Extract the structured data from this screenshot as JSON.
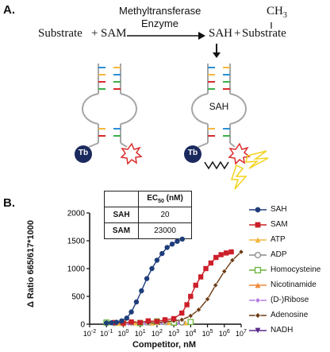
{
  "panel_a": {
    "label": "A.",
    "enzyme_line1": "Methyltransferase",
    "enzyme_line2": "Enzyme",
    "substrate": "Substrate",
    "plus1": "+",
    "sam": "SAM",
    "sah": "SAH",
    "plus2": "+",
    "substrate2": "Substrate",
    "methyl": "CH",
    "methyl_sub": "3",
    "sah_in_probe": "SAH",
    "tb_left": "Tb",
    "tb_right": "Tb"
  },
  "panel_b": {
    "label": "B.",
    "table": {
      "header_pre": "EC",
      "header_sub": "50",
      "header_post": " (nM)",
      "rows": [
        {
          "name": "SAH",
          "value": "20"
        },
        {
          "name": "SAM",
          "value": "23000"
        }
      ]
    },
    "legend": [
      {
        "label": "SAH",
        "color": "#1f3d7a",
        "marker": "circle"
      },
      {
        "label": "SAM",
        "color": "#cc1f2a",
        "marker": "square"
      },
      {
        "label": "ATP",
        "color": "#f5b63e",
        "marker": "triangle-up"
      },
      {
        "label": "ADP",
        "color": "#8a8a8a",
        "marker": "circle-open"
      },
      {
        "label": "Homocysteine",
        "color": "#6bb33b",
        "marker": "square-open"
      },
      {
        "label": "Nicotinamide",
        "color": "#f08a3a",
        "marker": "triangle-up"
      },
      {
        "label": "(D-)Ribose",
        "color": "#b47be0",
        "marker": "diamond"
      },
      {
        "label": "Adenosine",
        "color": "#6b3a14",
        "marker": "diamond"
      },
      {
        "label": "NADH",
        "color": "#5a2a8a",
        "marker": "triangle-down"
      }
    ]
  },
  "chart_data": {
    "type": "scatter",
    "xlabel": "Competitor, nM",
    "ylabel": "Δ Ratio 665/617*1000",
    "x_scale": "log",
    "xlim": [
      0.01,
      10000000
    ],
    "ylim": [
      0,
      2000
    ],
    "x_ticks": [
      {
        "base": "10",
        "exp": "-2"
      },
      {
        "base": "10",
        "exp": "-1"
      },
      {
        "base": "10",
        "exp": "0"
      },
      {
        "base": "10",
        "exp": "1"
      },
      {
        "base": "10",
        "exp": "2"
      },
      {
        "base": "10",
        "exp": "3"
      },
      {
        "base": "10",
        "exp": "4"
      },
      {
        "base": "10",
        "exp": "5"
      },
      {
        "base": "10",
        "exp": "6"
      },
      {
        "base": "10",
        "exp": "7"
      }
    ],
    "y_ticks": [
      "0",
      "500",
      "1000",
      "1500",
      "2000"
    ],
    "series": [
      {
        "name": "SAH",
        "x": [
          0.1,
          0.2,
          0.4,
          0.8,
          1.6,
          3,
          6,
          12,
          25,
          50,
          100,
          200,
          400,
          800,
          1600,
          3200
        ],
        "y": [
          20,
          25,
          35,
          60,
          110,
          220,
          400,
          600,
          820,
          1000,
          1150,
          1270,
          1380,
          1440,
          1490,
          1530
        ]
      },
      {
        "name": "SAM",
        "x": [
          0.3,
          1,
          3,
          10,
          30,
          100,
          300,
          1000,
          3000,
          6000,
          10000,
          20000,
          40000,
          80000,
          160000,
          320000,
          640000,
          1300000,
          2600000
        ],
        "y": [
          30,
          20,
          40,
          30,
          60,
          50,
          80,
          100,
          200,
          350,
          500,
          700,
          850,
          1000,
          1100,
          1200,
          1250,
          1280,
          1300
        ]
      },
      {
        "name": "Adenosine",
        "x": [
          30,
          100,
          300,
          1000,
          3000,
          10000,
          30000,
          100000,
          300000,
          1000000,
          3000000,
          10000000
        ],
        "y": [
          20,
          30,
          40,
          60,
          80,
          150,
          260,
          450,
          700,
          950,
          1150,
          1300
        ]
      },
      {
        "name": "Homocysteine",
        "x": [
          0.1,
          1,
          10,
          100,
          1000,
          10000
        ],
        "y": [
          30,
          40,
          20,
          50,
          30,
          40
        ]
      },
      {
        "name": "ADP",
        "x": [
          0.3,
          3,
          30,
          300,
          3000
        ],
        "y": [
          20,
          30,
          25,
          35,
          30
        ]
      },
      {
        "name": "ATP",
        "x": [
          0.5,
          5,
          50,
          500,
          5000
        ],
        "y": [
          15,
          25,
          20,
          30,
          25
        ]
      },
      {
        "name": "Nicotinamide",
        "x": [
          1,
          10,
          100,
          1000
        ],
        "y": [
          10,
          20,
          30,
          20
        ]
      },
      {
        "name": "(D-)Ribose",
        "x": [
          2,
          20,
          200,
          2000
        ],
        "y": [
          10,
          15,
          20,
          25
        ]
      },
      {
        "name": "NADH",
        "x": [
          4,
          40,
          400
        ],
        "y": [
          10,
          15,
          20
        ]
      }
    ]
  }
}
